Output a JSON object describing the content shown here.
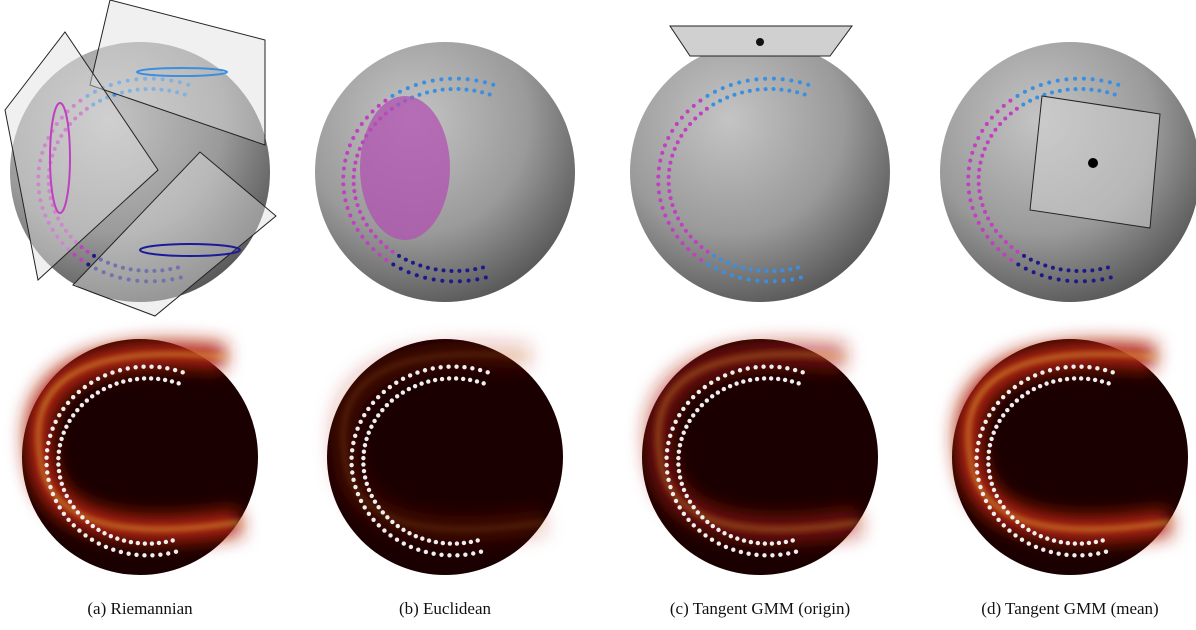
{
  "panels": [
    {
      "caption": "(a) Riemannian"
    },
    {
      "caption": "(b) Euclidean"
    },
    {
      "caption": "(c) Tangent GMM (origin)"
    },
    {
      "caption": "(d) Tangent GMM (mean)"
    }
  ]
}
